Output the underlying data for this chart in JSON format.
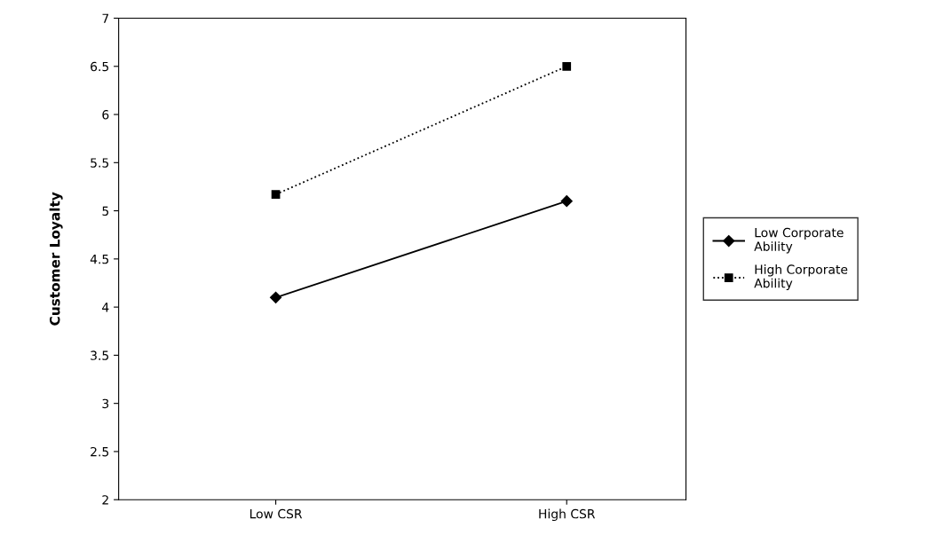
{
  "chart_data": {
    "type": "line",
    "ylabel": "Customer Loyalty",
    "categories": [
      "Low CSR",
      "High CSR"
    ],
    "series": [
      {
        "name": "Low Corporate Ability",
        "color": "#000000",
        "values": [
          4.1,
          5.1
        ],
        "marker": "diamond",
        "line_style": "solid"
      },
      {
        "name": "High Corporate Ability",
        "color": "#000000",
        "values": [
          5.17,
          6.5
        ],
        "marker": "square",
        "line_style": "dotted"
      }
    ],
    "ylim": [
      2,
      7
    ],
    "yticks": [
      2,
      2.5,
      3,
      3.5,
      4,
      4.5,
      5,
      5.5,
      6,
      6.5,
      7
    ],
    "grid": false,
    "legend": "right"
  }
}
